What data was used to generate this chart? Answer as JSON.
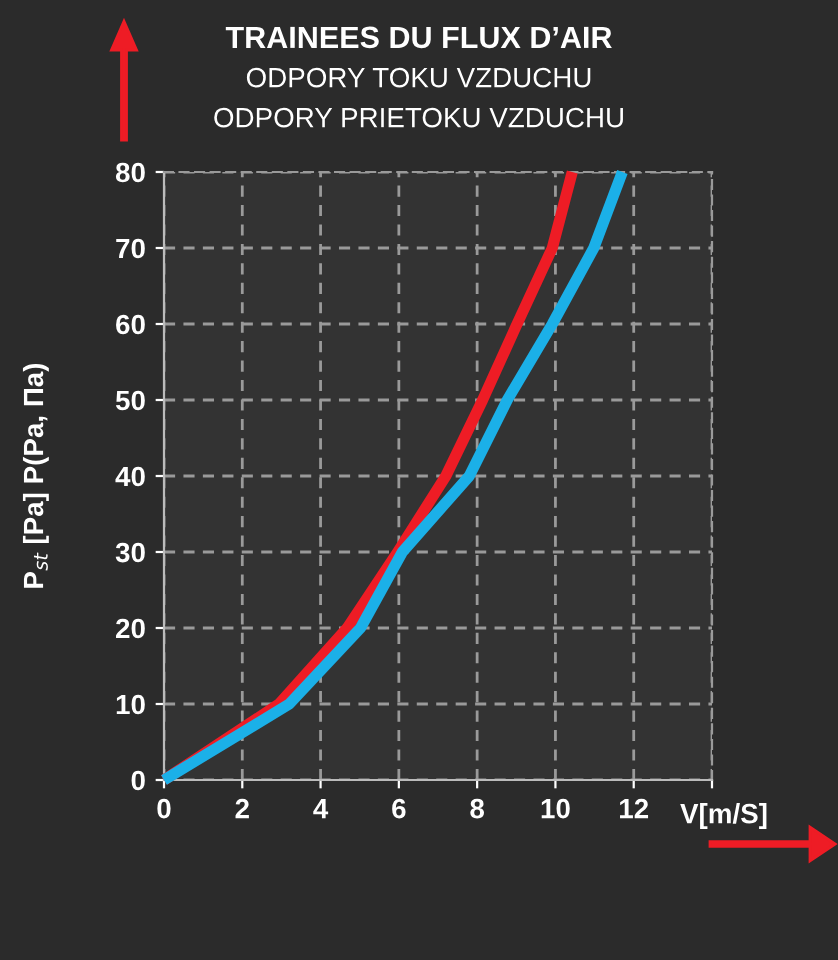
{
  "chart_data": {
    "type": "line",
    "title": "TRAINEES DU FLUX D’AIR",
    "subtitle": "ODPORY TOKU VZDUCHU\nODPORY PRIETOKU VZDUCHU",
    "xlabel": "V[m/S]",
    "ylabel": "P$_{st}$ [Pa] P(Pa, Па)",
    "series": [
      {
        "color": "#ee1c25",
        "x": [
          0,
          2.94,
          4.68,
          5.97,
          7.2,
          8.14,
          9.02,
          9.92,
          10.43
        ],
        "values": [
          0,
          10,
          20,
          30,
          40,
          50,
          60,
          70,
          80
        ]
      },
      {
        "color": "#1bb0e8",
        "x": [
          0,
          3.2,
          5.02,
          6.09,
          7.8,
          8.77,
          9.92,
          10.98,
          11.71
        ],
        "values": [
          0,
          10,
          20,
          30,
          40,
          50,
          60,
          70,
          80
        ]
      }
    ],
    "xlim": [
      0,
      14
    ],
    "ylim": [
      0,
      80
    ],
    "xticks": [
      0,
      2,
      4,
      6,
      8,
      10,
      12,
      {
        "value": 14,
        "label": null
      }
    ],
    "yticks": [
      0,
      10,
      20,
      30,
      40,
      50,
      60,
      70,
      80
    ],
    "grid": true,
    "line_style": "solid",
    "marker": "none"
  }
}
